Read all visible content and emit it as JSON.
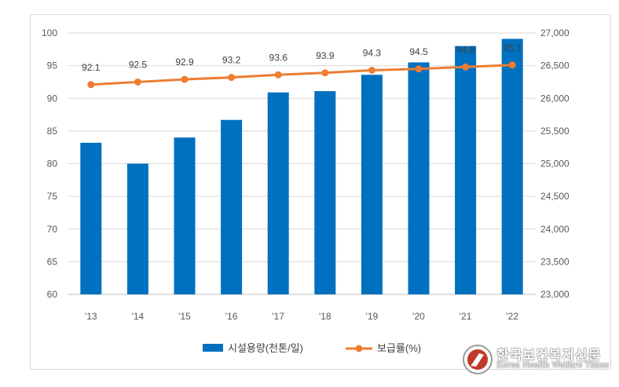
{
  "chart_data": {
    "type": "bar",
    "categories": [
      "'13",
      "'14",
      "'15",
      "'16",
      "'17",
      "'18",
      "'19",
      "'20",
      "'21",
      "'22"
    ],
    "series": [
      {
        "name": "시설용량(천톤/일)",
        "type": "bar",
        "axis": "right",
        "color": "#0070C0",
        "values": [
          25320,
          25000,
          25400,
          25670,
          26090,
          26110,
          26360,
          26550,
          26800,
          26910
        ]
      },
      {
        "name": "보급률(%)",
        "type": "line",
        "axis": "left",
        "color": "#ED7D31",
        "values": [
          92.1,
          92.5,
          92.9,
          93.2,
          93.6,
          93.9,
          94.3,
          94.5,
          94.8,
          95.1
        ],
        "data_labels": [
          "92.1",
          "92.5",
          "92.9",
          "93.2",
          "93.6",
          "93.9",
          "94.3",
          "94.5",
          "94.8",
          "95.1"
        ]
      }
    ],
    "y_left": {
      "min": 60,
      "max": 100,
      "ticks": [
        "100",
        "95",
        "90",
        "85",
        "80",
        "75",
        "70",
        "65",
        "60"
      ]
    },
    "y_right": {
      "min": 23000,
      "max": 27000,
      "ticks": [
        "27,000",
        "26,500",
        "26,000",
        "25,500",
        "25,000",
        "24,500",
        "24,000",
        "23,500",
        "23,000"
      ]
    },
    "grid": true,
    "legend": "bottom"
  },
  "watermark": {
    "korean": "한국보건복지신문",
    "english": "Korea Health Welfare Times"
  }
}
